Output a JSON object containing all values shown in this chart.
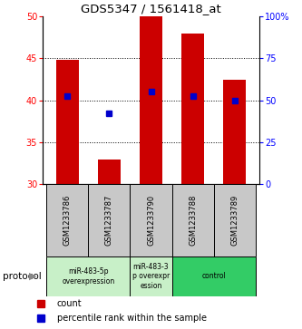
{
  "title": "GDS5347 / 1561418_at",
  "samples": [
    "GSM1233786",
    "GSM1233787",
    "GSM1233790",
    "GSM1233788",
    "GSM1233789"
  ],
  "bar_values": [
    44.8,
    33.0,
    50.0,
    48.0,
    42.5
  ],
  "bar_base": 30.0,
  "percentile_values": [
    40.5,
    38.5,
    41.0,
    40.5,
    40.0
  ],
  "ylim": [
    30,
    50
  ],
  "ylim_right": [
    0,
    100
  ],
  "yticks_left": [
    30,
    35,
    40,
    45,
    50
  ],
  "yticks_right": [
    0,
    25,
    50,
    75,
    100
  ],
  "bar_color": "#cc0000",
  "percentile_color": "#0000cc",
  "grid_yticks": [
    35,
    40,
    45
  ],
  "label_area_bg": "#c8c8c8",
  "groups": [
    {
      "start": 0,
      "end": 1,
      "label": "miR-483-5p\noverexpression",
      "color": "#c8f0c8"
    },
    {
      "start": 2,
      "end": 2,
      "label": "miR-483-3\np overexpr\nession",
      "color": "#c8f0c8"
    },
    {
      "start": 3,
      "end": 4,
      "label": "control",
      "color": "#33cc66"
    }
  ]
}
